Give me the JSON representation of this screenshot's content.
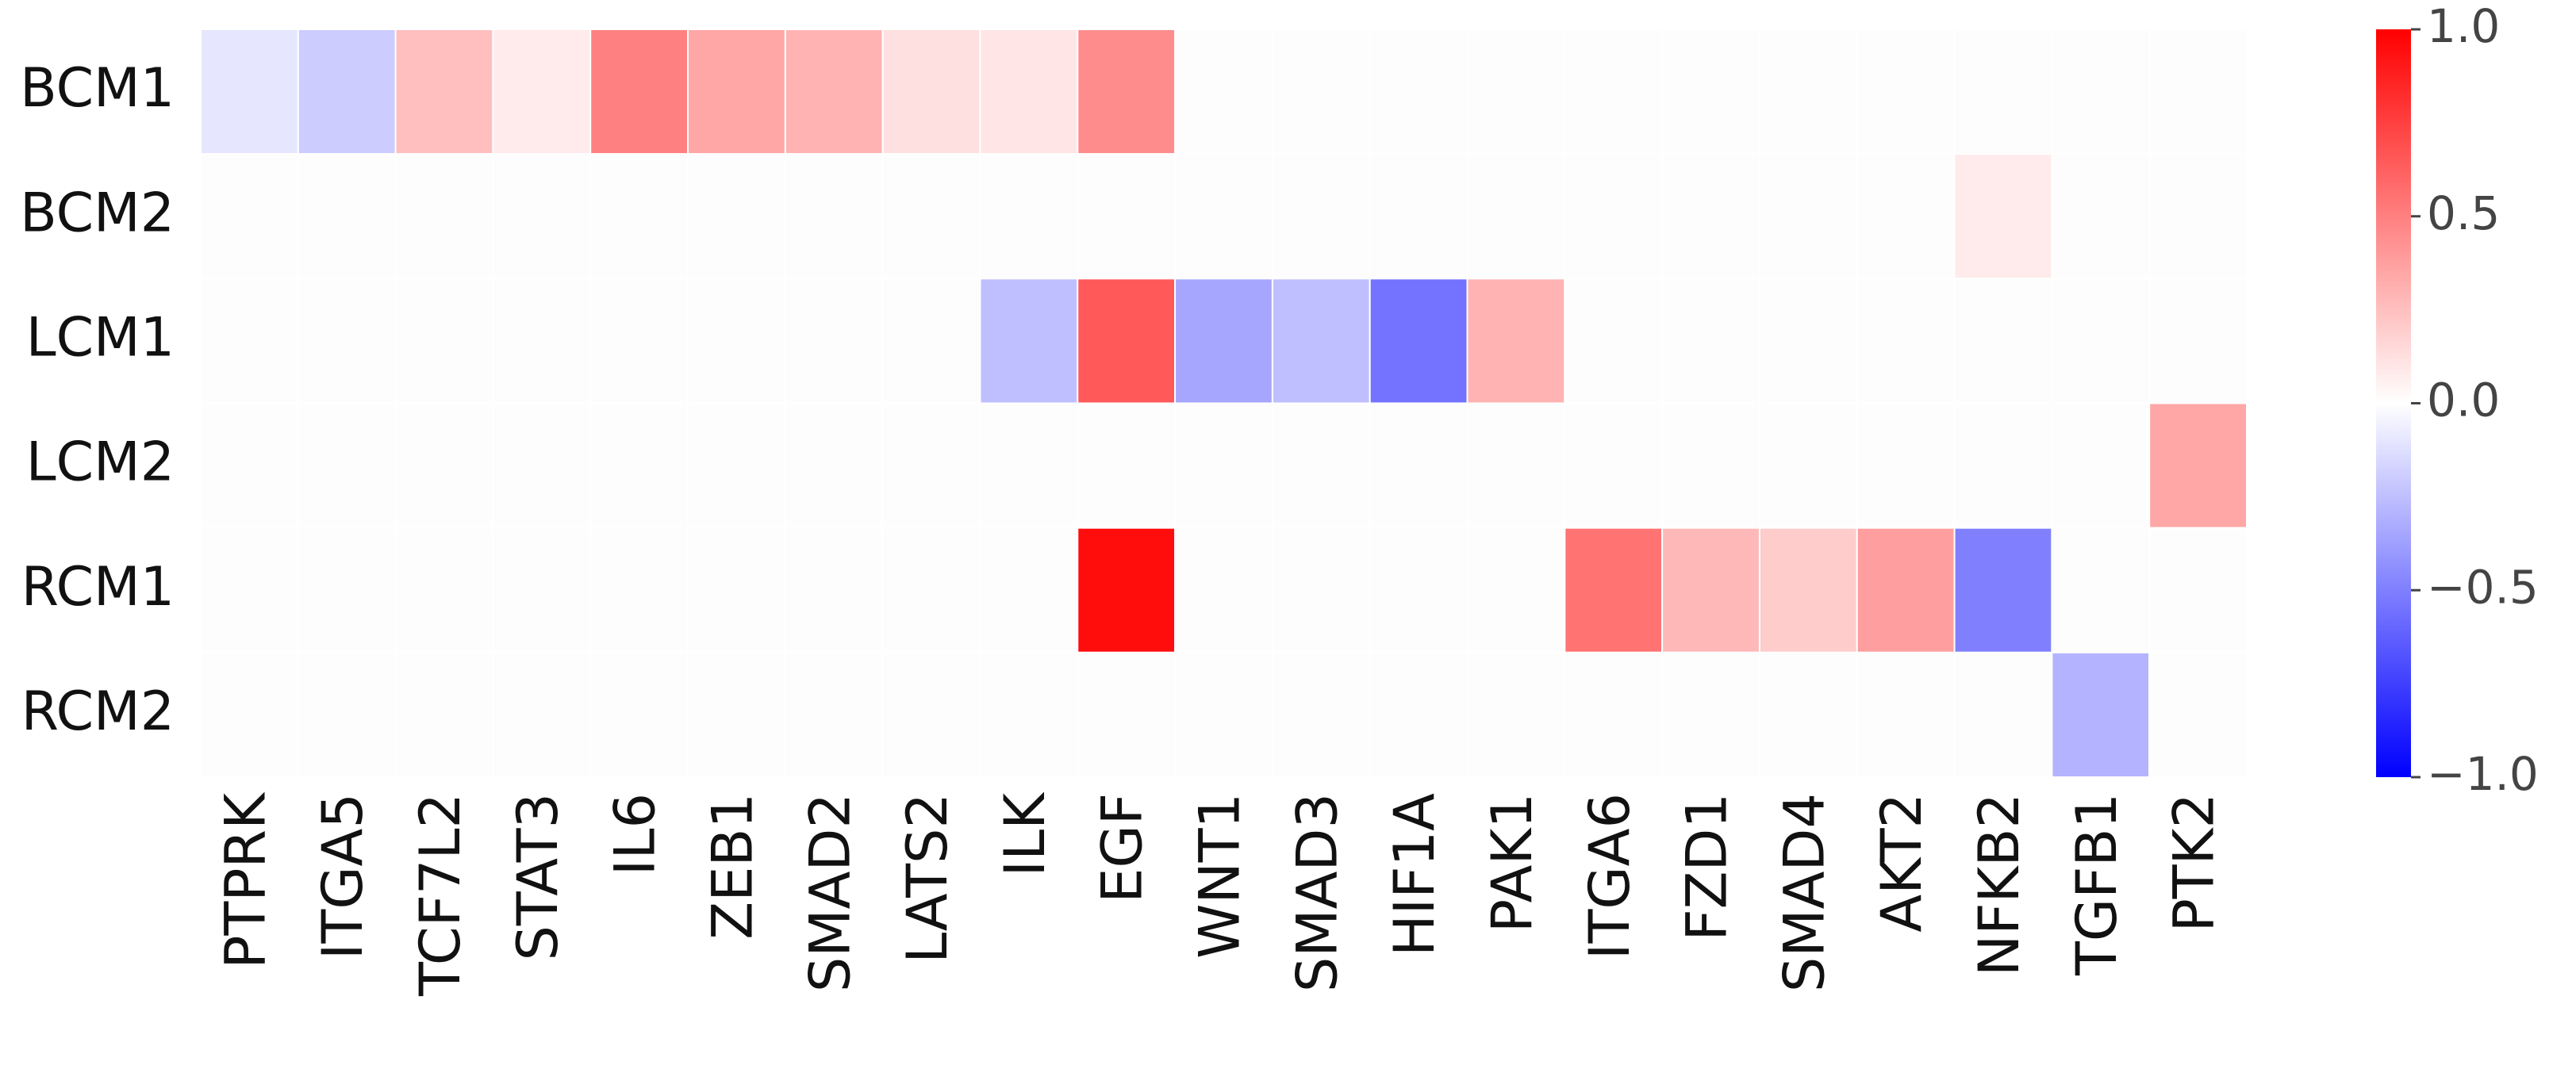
{
  "chart_data": {
    "type": "heatmap",
    "rows": [
      "BCM1",
      "BCM2",
      "LCM1",
      "LCM2",
      "RCM1",
      "RCM2"
    ],
    "categories": [
      "PTPRK",
      "ITGA5",
      "TCF7L2",
      "STAT3",
      "IL6",
      "ZEB1",
      "SMAD2",
      "LATS2",
      "ILK",
      "EGF",
      "WNT1",
      "SMAD3",
      "HIF1A",
      "PAK1",
      "ITGA6",
      "FZD1",
      "SMAD4",
      "AKT2",
      "NFKB2",
      "TGFB1",
      "PTK2"
    ],
    "values": [
      [
        -0.1,
        -0.2,
        0.25,
        0.08,
        0.5,
        0.35,
        0.3,
        0.12,
        0.1,
        0.45,
        0,
        0,
        0,
        0,
        0,
        0,
        0,
        0,
        0,
        0,
        0
      ],
      [
        0,
        0,
        0,
        0,
        0,
        0,
        0,
        0,
        0,
        0,
        0,
        0,
        0,
        0,
        0,
        0,
        0,
        0,
        0.08,
        0,
        0
      ],
      [
        0,
        0,
        0,
        0,
        0,
        0,
        0,
        0,
        -0.25,
        0.65,
        -0.35,
        -0.25,
        -0.55,
        0.3,
        0,
        0,
        0,
        0,
        0,
        0,
        0
      ],
      [
        0,
        0,
        0,
        0,
        0,
        0,
        0,
        0,
        0,
        0,
        0,
        0,
        0,
        0,
        0,
        0,
        0,
        0,
        0,
        0,
        0.35
      ],
      [
        0,
        0,
        0,
        0,
        0,
        0,
        0,
        0,
        0,
        0.95,
        0,
        0,
        0,
        0,
        0.55,
        0.28,
        0.2,
        0.38,
        -0.5,
        0,
        0
      ],
      [
        0,
        0,
        0,
        0,
        0,
        0,
        0,
        0,
        0,
        0,
        0,
        0,
        0,
        0,
        0,
        0,
        0,
        0,
        0,
        -0.3,
        0
      ]
    ],
    "colormap": "bwr",
    "clim": [
      -1,
      1
    ],
    "cticks": [
      {
        "value": -1,
        "label": "−1.0"
      },
      {
        "value": -0.5,
        "label": "−0.5"
      },
      {
        "value": 0,
        "label": "0.0"
      },
      {
        "value": 0.5,
        "label": "0.5"
      },
      {
        "value": 1,
        "label": "1.0"
      }
    ]
  }
}
